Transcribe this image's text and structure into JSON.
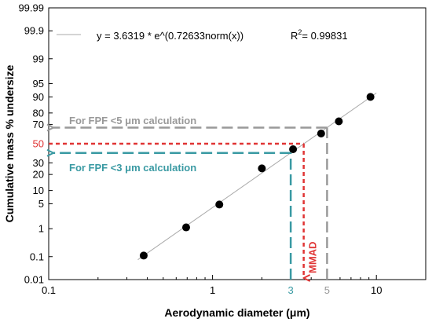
{
  "chart_data": {
    "type": "scatter",
    "title": "",
    "xlabel": "Aerodynamic diameter (μm)",
    "ylabel": "Cumulative mass % undersize",
    "x_scale": "log",
    "y_scale": "probability",
    "xlim": [
      0.1,
      20
    ],
    "ylim": [
      0.01,
      99.99
    ],
    "grid": false,
    "x_ticks": [
      {
        "value": 0.1,
        "label": "0.1"
      },
      {
        "value": 1,
        "label": "1"
      },
      {
        "value": 10,
        "label": "10"
      }
    ],
    "x_ticks_highlight": [
      {
        "value": 3,
        "label": "3",
        "color": "#3a9aa3"
      },
      {
        "value": 5,
        "label": "5",
        "color": "#999999"
      }
    ],
    "y_ticks": [
      {
        "value": 0.01,
        "label": "0.01"
      },
      {
        "value": 0.1,
        "label": "0.1"
      },
      {
        "value": 1,
        "label": "1"
      },
      {
        "value": 5,
        "label": "5"
      },
      {
        "value": 10,
        "label": "10"
      },
      {
        "value": 20,
        "label": "20"
      },
      {
        "value": 30,
        "label": "30"
      },
      {
        "value": 50,
        "label": "50",
        "color": "#e03535"
      },
      {
        "value": 70,
        "label": "70"
      },
      {
        "value": 80,
        "label": "80"
      },
      {
        "value": 90,
        "label": "90"
      },
      {
        "value": 95,
        "label": "95"
      },
      {
        "value": 99,
        "label": "99"
      },
      {
        "value": 99.9,
        "label": "99.9"
      },
      {
        "value": 99.99,
        "label": "99.99"
      }
    ],
    "series": [
      {
        "points": [
          {
            "x": 0.38,
            "y": 0.11
          },
          {
            "x": 0.69,
            "y": 1.1
          },
          {
            "x": 1.1,
            "y": 4.8
          },
          {
            "x": 2.0,
            "y": 25
          },
          {
            "x": 3.1,
            "y": 44
          },
          {
            "x": 4.6,
            "y": 61
          },
          {
            "x": 5.9,
            "y": 73
          },
          {
            "x": 9.2,
            "y": 90
          }
        ],
        "color": "#000000"
      }
    ],
    "fit": {
      "equation": "y = 3.6319 * e^(0.72633norm(x))",
      "r2_label": "R",
      "r2_sup": "2",
      "r2_value": "= 0.99831",
      "color": "#aaaaaa",
      "x_range": [
        0.35,
        10
      ]
    },
    "annotations": {
      "fpf5": {
        "label": "For FPF <5 μm calculation",
        "x": 5,
        "y": 67,
        "color": "#999999"
      },
      "fpf3": {
        "label": "For FPF <3 μm calculation",
        "x": 3,
        "y": 40,
        "color": "#3a9aa3"
      },
      "mmad": {
        "label": "MMAD",
        "x": 3.6,
        "y": 50,
        "color": "#e03535"
      }
    }
  }
}
